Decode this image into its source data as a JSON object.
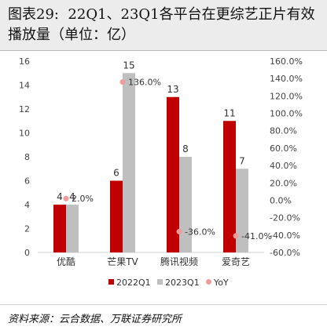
{
  "figure": {
    "title": "图表29:  22Q1、23Q1各平台在更综艺正片有效播放量（单位：亿）",
    "source": "资料来源：云合数据、万联证券研究所"
  },
  "chart_data": {
    "type": "bar",
    "categories": [
      "优酷",
      "芒果TV",
      "腾讯视频",
      "爱奇艺"
    ],
    "series": [
      {
        "name": "2022Q1",
        "type": "bar",
        "axis": "left",
        "color": "#c00000",
        "values": [
          4,
          6,
          13,
          11
        ],
        "labels": [
          "4",
          "6",
          "13",
          "11"
        ]
      },
      {
        "name": "2023Q1",
        "type": "bar",
        "axis": "left",
        "color": "#bfbfbf",
        "values": [
          4,
          15,
          8,
          7
        ],
        "labels": [
          "4",
          "15",
          "8",
          "7"
        ]
      },
      {
        "name": "YoY",
        "type": "scatter",
        "axis": "right",
        "color": "#f19a9a",
        "values": [
          2.0,
          136.0,
          -36.0,
          -41.0
        ],
        "labels": [
          "2.0%",
          "136.0%",
          "-36.0%",
          "-41.0%"
        ]
      }
    ],
    "y_left": {
      "min": 0,
      "max": 16,
      "ticks": [
        "0",
        "2",
        "4",
        "6",
        "8",
        "10",
        "12",
        "14",
        "16"
      ]
    },
    "y_right": {
      "min": -60,
      "max": 160,
      "ticks": [
        "-60.0%",
        "-40.0%",
        "-20.0%",
        "0.0%",
        "20.0%",
        "40.0%",
        "60.0%",
        "80.0%",
        "100.0%",
        "120.0%",
        "140.0%",
        "160.0%"
      ]
    },
    "legend_position": "bottom"
  }
}
